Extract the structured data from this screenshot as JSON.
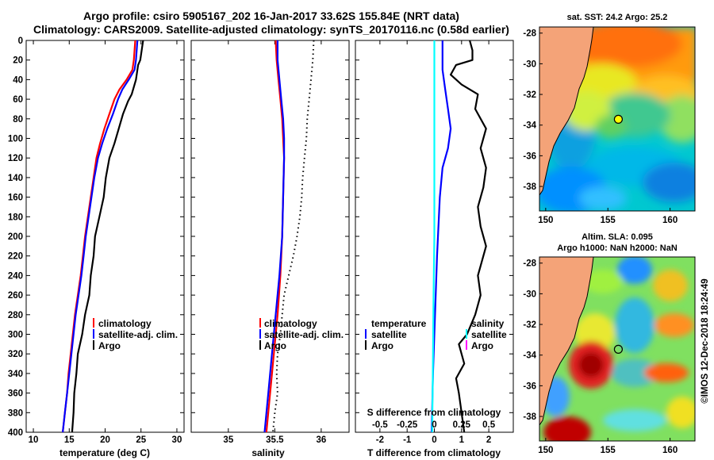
{
  "header": {
    "title_line1": "Argo profile: csiro 5905167_202 16-Jan-2017 33.62S 155.84E (NRT data)",
    "title_line2": "Climatology: CARS2009. Satellite-adjusted climatology: synTS_20170116.nc (0.58d earlier)"
  },
  "colors": {
    "climatology": "#ff0000",
    "satellite": "#0000ff",
    "argo": "#000000",
    "sat_salinity": "#00ffff",
    "argo_salinity": "#ff00ff"
  },
  "chart_data": [
    {
      "type": "line",
      "id": "temperature",
      "xlabel": "temperature (deg C)",
      "ylabel": "",
      "xlim": [
        9,
        31
      ],
      "ylim": [
        400,
        0
      ],
      "x_ticks": [
        "10",
        "15",
        "20",
        "25",
        "30"
      ],
      "x_tick_values": [
        10,
        15,
        20,
        25,
        30
      ],
      "y_ticks": [
        "0",
        "20",
        "40",
        "60",
        "80",
        "100",
        "120",
        "140",
        "160",
        "180",
        "200",
        "220",
        "240",
        "260",
        "280",
        "300",
        "320",
        "340",
        "360",
        "380",
        "400"
      ],
      "y_tick_values": [
        0,
        20,
        40,
        60,
        80,
        100,
        120,
        140,
        160,
        180,
        200,
        220,
        240,
        260,
        280,
        300,
        320,
        340,
        360,
        380,
        400
      ],
      "legend": [
        "climatology",
        "satellite-adj. clim.",
        "Argo"
      ],
      "series": [
        {
          "name": "climatology",
          "style": "solid",
          "points": [
            [
              24.2,
              0
            ],
            [
              24.0,
              20
            ],
            [
              23.8,
              30
            ],
            [
              23.0,
              40
            ],
            [
              22.0,
              50
            ],
            [
              21.3,
              60
            ],
            [
              20.6,
              75
            ],
            [
              19.9,
              90
            ],
            [
              19.3,
              105
            ],
            [
              18.8,
              120
            ],
            [
              18.4,
              140
            ],
            [
              18.0,
              160
            ],
            [
              17.6,
              180
            ],
            [
              17.2,
              200
            ],
            [
              16.9,
              220
            ],
            [
              16.6,
              240
            ],
            [
              16.2,
              260
            ],
            [
              15.8,
              280
            ],
            [
              15.5,
              300
            ],
            [
              15.2,
              320
            ],
            [
              14.9,
              340
            ],
            [
              14.7,
              360
            ],
            [
              14.4,
              380
            ],
            [
              14.1,
              400
            ]
          ]
        },
        {
          "name": "satellite-adj. clim.",
          "style": "solid",
          "points": [
            [
              24.5,
              0
            ],
            [
              24.3,
              20
            ],
            [
              24.1,
              30
            ],
            [
              23.3,
              40
            ],
            [
              22.4,
              50
            ],
            [
              21.8,
              60
            ],
            [
              21.1,
              75
            ],
            [
              20.3,
              90
            ],
            [
              19.6,
              105
            ],
            [
              19.0,
              120
            ],
            [
              18.5,
              140
            ],
            [
              18.1,
              160
            ],
            [
              17.7,
              180
            ],
            [
              17.3,
              200
            ],
            [
              17.0,
              220
            ],
            [
              16.7,
              240
            ],
            [
              16.3,
              260
            ],
            [
              15.9,
              280
            ],
            [
              15.6,
              300
            ],
            [
              15.3,
              320
            ],
            [
              15.0,
              340
            ],
            [
              14.7,
              360
            ],
            [
              14.4,
              380
            ],
            [
              14.1,
              400
            ]
          ]
        },
        {
          "name": "Argo",
          "style": "solid",
          "points": [
            [
              25.3,
              0
            ],
            [
              25.1,
              10
            ],
            [
              24.9,
              20
            ],
            [
              24.6,
              25
            ],
            [
              24.3,
              40
            ],
            [
              23.7,
              55
            ],
            [
              23.2,
              62
            ],
            [
              22.5,
              75
            ],
            [
              21.9,
              90
            ],
            [
              21.3,
              105
            ],
            [
              20.6,
              120
            ],
            [
              20.1,
              140
            ],
            [
              19.8,
              160
            ],
            [
              19.2,
              180
            ],
            [
              18.6,
              200
            ],
            [
              18.4,
              220
            ],
            [
              18.0,
              240
            ],
            [
              17.8,
              260
            ],
            [
              17.2,
              280
            ],
            [
              16.8,
              300
            ],
            [
              16.2,
              320
            ],
            [
              16.0,
              340
            ],
            [
              15.7,
              360
            ],
            [
              15.6,
              380
            ],
            [
              15.4,
              400
            ]
          ]
        }
      ]
    },
    {
      "type": "line",
      "id": "salinity",
      "xlabel": "salinity",
      "xlim": [
        34.6,
        36.3
      ],
      "ylim": [
        400,
        0
      ],
      "x_ticks": [
        "35",
        "35.5",
        "36"
      ],
      "x_tick_values": [
        35,
        35.5,
        36
      ],
      "legend": [
        "climatology",
        "satellite-adj. clim.",
        "Argo"
      ],
      "series": [
        {
          "name": "climatology",
          "style": "solid",
          "points": [
            [
              35.51,
              0
            ],
            [
              35.52,
              20
            ],
            [
              35.54,
              40
            ],
            [
              35.56,
              60
            ],
            [
              35.58,
              80
            ],
            [
              35.59,
              100
            ],
            [
              35.6,
              120
            ],
            [
              35.59,
              160
            ],
            [
              35.58,
              200
            ],
            [
              35.56,
              240
            ],
            [
              35.53,
              280
            ],
            [
              35.49,
              320
            ],
            [
              35.45,
              360
            ],
            [
              35.41,
              400
            ]
          ]
        },
        {
          "name": "satellite-adj. clim.",
          "style": "solid",
          "points": [
            [
              35.53,
              0
            ],
            [
              35.53,
              20
            ],
            [
              35.55,
              40
            ],
            [
              35.57,
              60
            ],
            [
              35.59,
              80
            ],
            [
              35.6,
              100
            ],
            [
              35.6,
              120
            ],
            [
              35.59,
              160
            ],
            [
              35.58,
              200
            ],
            [
              35.55,
              240
            ],
            [
              35.51,
              280
            ],
            [
              35.47,
              320
            ],
            [
              35.43,
              360
            ],
            [
              35.39,
              400
            ]
          ]
        },
        {
          "name": "Argo",
          "style": "dotted",
          "points": [
            [
              35.92,
              0
            ],
            [
              35.91,
              20
            ],
            [
              35.89,
              40
            ],
            [
              35.87,
              60
            ],
            [
              35.85,
              80
            ],
            [
              35.84,
              100
            ],
            [
              35.82,
              120
            ],
            [
              35.8,
              140
            ],
            [
              35.79,
              160
            ],
            [
              35.77,
              180
            ],
            [
              35.74,
              200
            ],
            [
              35.7,
              220
            ],
            [
              35.65,
              240
            ],
            [
              35.6,
              260
            ],
            [
              35.58,
              280
            ],
            [
              35.56,
              300
            ],
            [
              35.53,
              320
            ],
            [
              35.52,
              340
            ],
            [
              35.53,
              360
            ],
            [
              35.5,
              380
            ],
            [
              35.48,
              400
            ]
          ]
        }
      ]
    },
    {
      "type": "line",
      "id": "difference",
      "xlabel": "T difference from climatology",
      "top_xlabel": "S difference from climatology",
      "xlim": [
        -2.9,
        2.9
      ],
      "ylim": [
        400,
        0
      ],
      "x_ticks": [
        "-2",
        "-1",
        "0",
        "1",
        "2"
      ],
      "x_tick_values": [
        -2,
        -1,
        0,
        1,
        2
      ],
      "s_ticks": [
        "-0.5",
        "-0.25",
        "0",
        "0.25",
        "0.5"
      ],
      "s_tick_values": [
        -0.5,
        -0.25,
        0,
        0.25,
        0.5
      ],
      "legend_temperature": [
        "temperature",
        "satellite",
        "Argo"
      ],
      "legend_salinity": [
        "salinity",
        "satellite",
        "Argo"
      ],
      "series": [
        {
          "name": "temperature satellite",
          "style": "solid",
          "points": [
            [
              0.3,
              0
            ],
            [
              0.3,
              30
            ],
            [
              0.4,
              50
            ],
            [
              0.5,
              70
            ],
            [
              0.6,
              90
            ],
            [
              0.5,
              110
            ],
            [
              0.3,
              130
            ],
            [
              0.2,
              160
            ],
            [
              0.1,
              220
            ],
            [
              0.05,
              260
            ],
            [
              0.0,
              300
            ],
            [
              -0.05,
              340
            ],
            [
              -0.1,
              400
            ]
          ]
        },
        {
          "name": "salinity satellite",
          "style": "solid",
          "points": [
            [
              0.0,
              0
            ],
            [
              0.0,
              50
            ],
            [
              0.0,
              100
            ],
            [
              0.0,
              150
            ],
            [
              0.0,
              200
            ],
            [
              -0.03,
              260
            ],
            [
              -0.05,
              320
            ],
            [
              -0.08,
              400
            ]
          ]
        },
        {
          "name": "temperature Argo",
          "style": "solid",
          "points": [
            [
              1.3,
              0
            ],
            [
              1.4,
              10
            ],
            [
              1.4,
              20
            ],
            [
              0.8,
              25
            ],
            [
              0.6,
              35
            ],
            [
              1.0,
              45
            ],
            [
              1.6,
              55
            ],
            [
              1.5,
              70
            ],
            [
              1.9,
              90
            ],
            [
              1.7,
              110
            ],
            [
              1.9,
              130
            ],
            [
              1.8,
              150
            ],
            [
              1.6,
              170
            ],
            [
              1.7,
              190
            ],
            [
              1.9,
              210
            ],
            [
              1.6,
              240
            ],
            [
              1.7,
              260
            ],
            [
              1.5,
              280
            ],
            [
              1.2,
              300
            ],
            [
              0.9,
              310
            ],
            [
              1.1,
              330
            ],
            [
              0.8,
              345
            ],
            [
              0.9,
              360
            ],
            [
              1.0,
              380
            ],
            [
              1.1,
              400
            ]
          ]
        }
      ]
    },
    {
      "type": "heatmap",
      "id": "sst_map",
      "title": "sat. SST: 24.2 Argo: 25.2",
      "xlim": [
        149.5,
        162
      ],
      "ylim": [
        -39.6,
        -27.6
      ],
      "x_ticks": [
        "150",
        "155",
        "160"
      ],
      "x_tick_values": [
        150,
        155,
        160
      ],
      "y_ticks": [
        "-28",
        "-30",
        "-32",
        "-34",
        "-36",
        "-38"
      ],
      "y_tick_values": [
        -28,
        -30,
        -32,
        -34,
        -36,
        -38
      ],
      "argo_position": [
        155.84,
        -33.62
      ]
    },
    {
      "type": "heatmap",
      "id": "sla_map",
      "title_line1": "Altim. SLA: 0.095",
      "title_line2": "Argo h1000: NaN h2000: NaN",
      "xlim": [
        149.5,
        162
      ],
      "ylim": [
        -39.6,
        -27.6
      ],
      "x_ticks": [
        "150",
        "155",
        "160"
      ],
      "x_tick_values": [
        150,
        155,
        160
      ],
      "y_ticks": [
        "-28",
        "-30",
        "-32",
        "-34",
        "-36",
        "-38"
      ],
      "y_tick_values": [
        -28,
        -30,
        -32,
        -34,
        -36,
        -38
      ],
      "argo_position": [
        155.84,
        -33.62
      ]
    }
  ],
  "footer": {
    "watermark": "©IMOS 12-Dec-2018 18:24:49"
  }
}
